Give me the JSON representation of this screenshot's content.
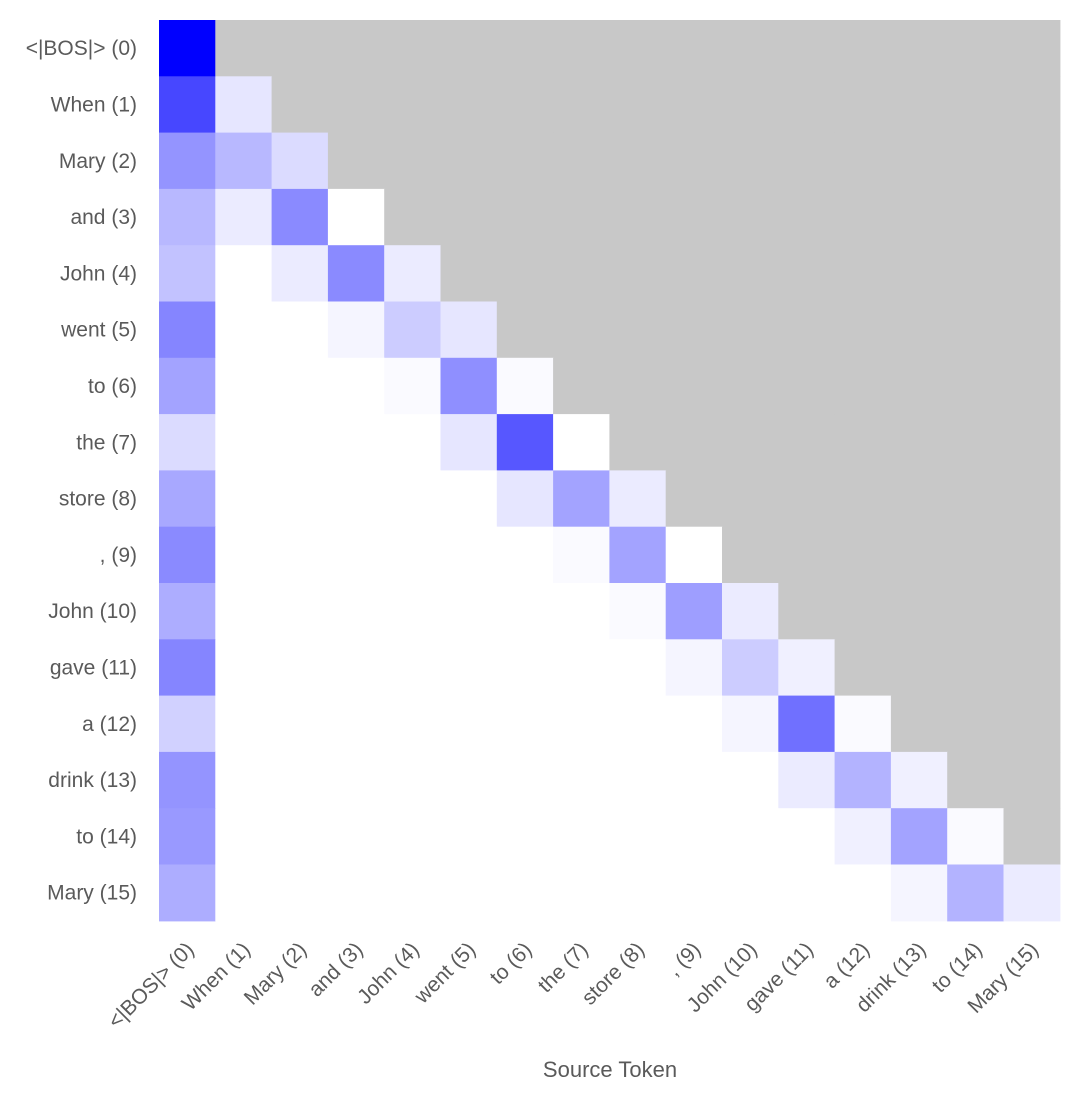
{
  "chart_data": {
    "type": "heatmap",
    "title": "",
    "xlabel": "Source Token",
    "ylabel": "",
    "x_tokens": [
      "<|BOS|> (0)",
      "When (1)",
      "Mary (2)",
      "and (3)",
      "John (4)",
      "went (5)",
      "to (6)",
      "the (7)",
      "store (8)",
      ", (9)",
      "John (10)",
      "gave (11)",
      "a (12)",
      "drink (13)",
      "to (14)",
      "Mary (15)"
    ],
    "y_tokens": [
      "<|BOS|> (0)",
      "When (1)",
      "Mary (2)",
      "and (3)",
      "John (4)",
      "went (5)",
      "to (6)",
      "the (7)",
      "store (8)",
      ", (9)",
      "John (10)",
      "gave (11)",
      "a (12)",
      "drink (13)",
      "to (14)",
      "Mary (15)"
    ],
    "value_range": [
      0,
      1
    ],
    "masked_color": "#c8c8c8",
    "low_color": "#ffffff",
    "high_color": "#0000ff",
    "masked": "upper-triangle",
    "values": [
      [
        1.0
      ],
      [
        0.72,
        0.1
      ],
      [
        0.42,
        0.28,
        0.14
      ],
      [
        0.28,
        0.08,
        0.46,
        0.0
      ],
      [
        0.24,
        0.0,
        0.08,
        0.46,
        0.08
      ],
      [
        0.48,
        0.0,
        0.0,
        0.04,
        0.2,
        0.1
      ],
      [
        0.36,
        0.0,
        0.0,
        0.0,
        0.02,
        0.44,
        0.02
      ],
      [
        0.14,
        0.0,
        0.0,
        0.0,
        0.0,
        0.1,
        0.66,
        0.0
      ],
      [
        0.34,
        0.0,
        0.0,
        0.0,
        0.0,
        0.0,
        0.1,
        0.36,
        0.08
      ],
      [
        0.46,
        0.0,
        0.0,
        0.0,
        0.0,
        0.0,
        0.0,
        0.02,
        0.36,
        0.0
      ],
      [
        0.32,
        0.0,
        0.0,
        0.0,
        0.0,
        0.0,
        0.0,
        0.0,
        0.02,
        0.38,
        0.08
      ],
      [
        0.48,
        0.0,
        0.0,
        0.0,
        0.0,
        0.0,
        0.0,
        0.0,
        0.0,
        0.04,
        0.2,
        0.06
      ],
      [
        0.18,
        0.0,
        0.0,
        0.0,
        0.0,
        0.0,
        0.0,
        0.0,
        0.0,
        0.0,
        0.04,
        0.56,
        0.02
      ],
      [
        0.42,
        0.0,
        0.0,
        0.0,
        0.0,
        0.0,
        0.0,
        0.0,
        0.0,
        0.0,
        0.0,
        0.08,
        0.3,
        0.06
      ],
      [
        0.4,
        0.0,
        0.0,
        0.0,
        0.0,
        0.0,
        0.0,
        0.0,
        0.0,
        0.0,
        0.0,
        0.0,
        0.06,
        0.36,
        0.02
      ],
      [
        0.32,
        0.0,
        0.0,
        0.0,
        0.0,
        0.0,
        0.0,
        0.0,
        0.0,
        0.0,
        0.0,
        0.0,
        0.0,
        0.04,
        0.3,
        0.08
      ]
    ]
  }
}
